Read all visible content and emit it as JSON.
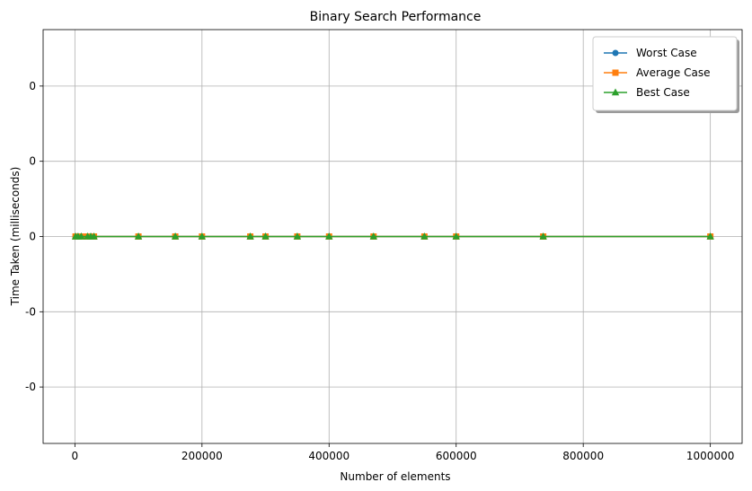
{
  "chart_data": {
    "type": "line",
    "title": "Binary Search Performance",
    "xlabel": "Number of elements",
    "ylabel": "Time Taken (milliseconds)",
    "x": [
      1000,
      5000,
      10000,
      20000,
      25000,
      30000,
      100000,
      158000,
      200000,
      276000,
      300000,
      350000,
      400000,
      470000,
      550000,
      600000,
      737000,
      1000000
    ],
    "series": [
      {
        "name": "Worst Case",
        "color": "#1f77b4",
        "marker": "circle",
        "values": [
          0,
          0,
          0,
          0,
          0,
          0,
          0,
          0,
          0,
          0,
          0,
          0,
          0,
          0,
          0,
          0,
          0,
          0
        ]
      },
      {
        "name": "Average Case",
        "color": "#ff7f0e",
        "marker": "square",
        "values": [
          0,
          0,
          0,
          0,
          0,
          0,
          0,
          0,
          0,
          0,
          0,
          0,
          0,
          0,
          0,
          0,
          0,
          0
        ]
      },
      {
        "name": "Best Case",
        "color": "#2ca02c",
        "marker": "triangle",
        "values": [
          0,
          0,
          0,
          0,
          0,
          0,
          0,
          0,
          0,
          0,
          0,
          0,
          0,
          0,
          0,
          0,
          0,
          0
        ]
      }
    ],
    "xlim": [
      -50000,
      1050000
    ],
    "ylim": [
      -0.055,
      0.055
    ],
    "xticks": [
      0,
      200000,
      400000,
      600000,
      800000,
      1000000
    ],
    "xtick_labels": [
      "0",
      "200000",
      "400000",
      "600000",
      "800000",
      "1000000"
    ],
    "yticks": [
      0.04,
      0.02,
      0,
      -0.02,
      -0.04
    ],
    "ytick_labels": [
      "0",
      "0",
      "0",
      "-0",
      "-0"
    ],
    "grid": true,
    "legend_position": "top-right"
  }
}
